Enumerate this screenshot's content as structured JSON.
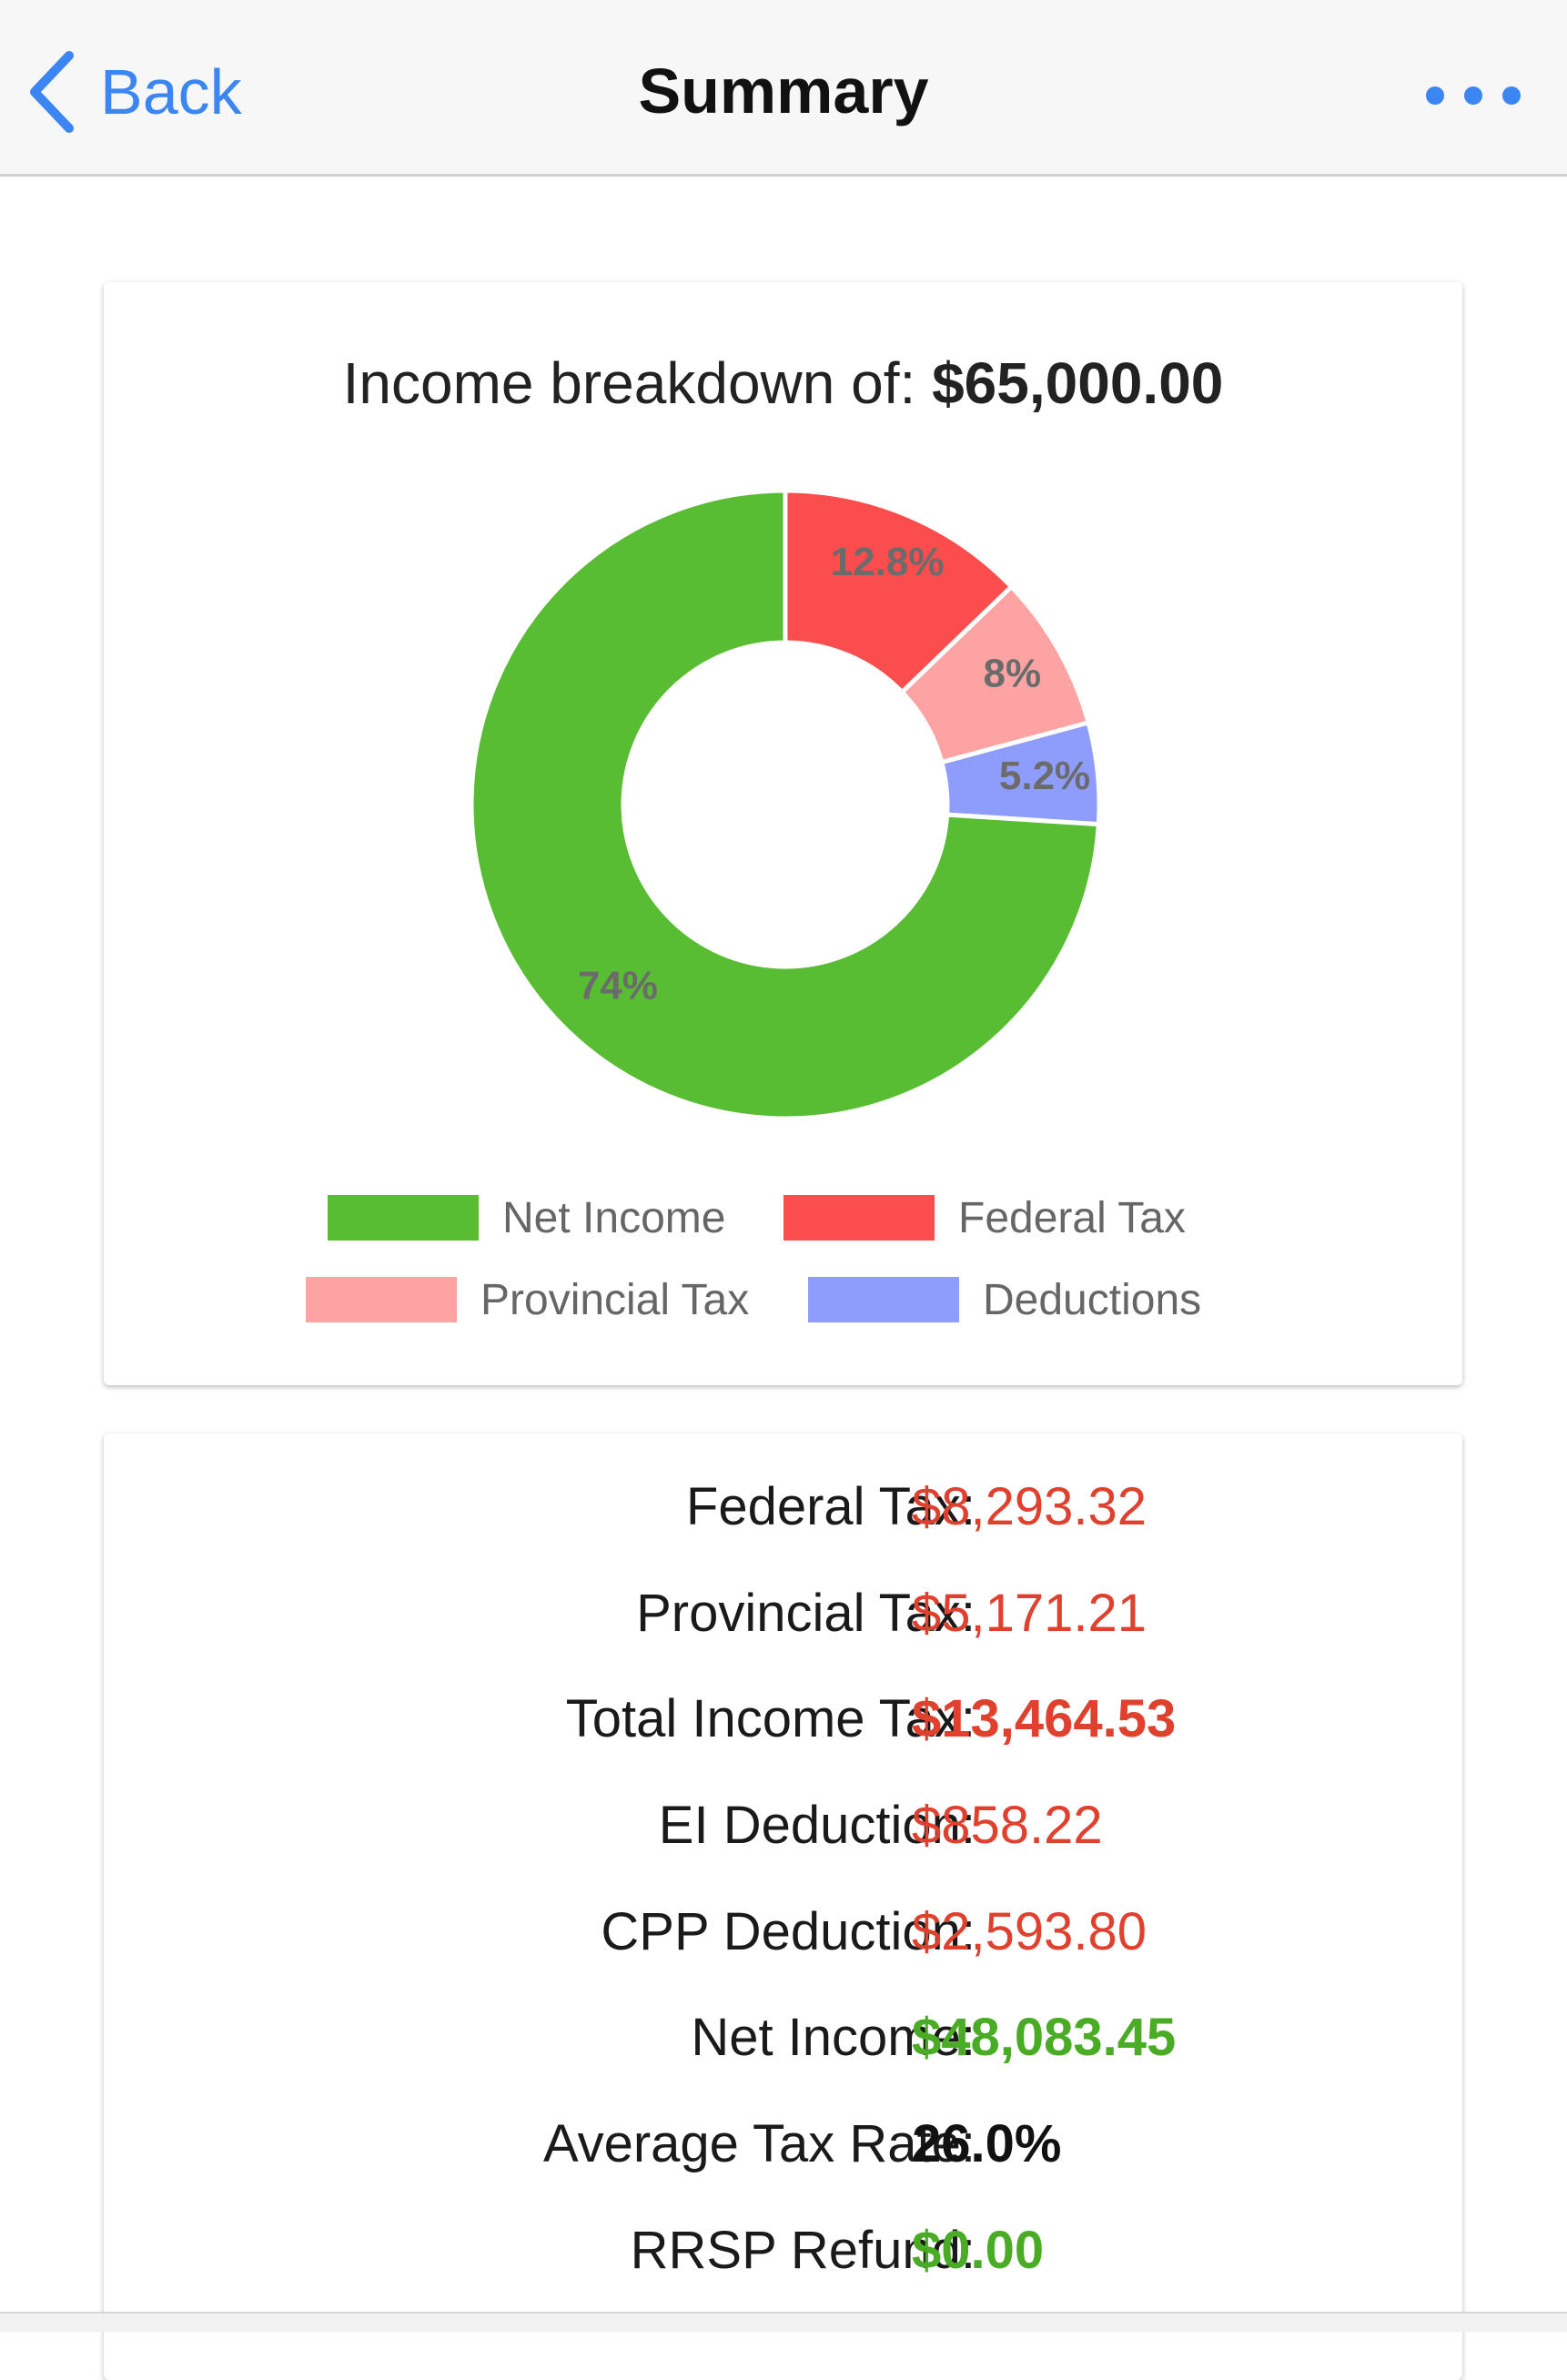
{
  "nav": {
    "back_label": "Back",
    "title": "Summary"
  },
  "breakdown": {
    "label": "Income breakdown of:",
    "amount": "$65,000.00"
  },
  "colors": {
    "net_income": "#58bd32",
    "federal_tax": "#fb4d4d",
    "provincial_tax": "#fda3a3",
    "deductions": "#8e9dfc",
    "negative": "#e0402e",
    "positive": "#4aab25",
    "neutral": "#111111",
    "accent": "#3b86f2"
  },
  "chart_data": {
    "type": "pie",
    "categories": [
      "Net Income",
      "Federal Tax",
      "Provincial Tax",
      "Deductions"
    ],
    "values": [
      74,
      12.8,
      8,
      5.2
    ],
    "labels": [
      "74%",
      "12.8%",
      "8%",
      "5.2%"
    ],
    "colors": [
      "#58bd32",
      "#fb4d4d",
      "#fda3a3",
      "#8e9dfc"
    ],
    "legend_position": "bottom",
    "donut": true
  },
  "summary": {
    "rows": [
      {
        "label": "Federal Tax:",
        "value": "$8,293.32",
        "style": "negative",
        "bold": false
      },
      {
        "label": "Provincial Tax:",
        "value": "$5,171.21",
        "style": "negative",
        "bold": false
      },
      {
        "label": "Total Income Tax:",
        "value": "$13,464.53",
        "style": "negative",
        "bold": true
      },
      {
        "label": "EI Deduction:",
        "value": "$858.22",
        "style": "negative",
        "bold": false
      },
      {
        "label": "CPP Deduction:",
        "value": "$2,593.80",
        "style": "negative",
        "bold": false
      },
      {
        "label": "Net Income:",
        "value": "$48,083.45",
        "style": "positive",
        "bold": true
      },
      {
        "label": "Average Tax Rate:",
        "value": "26.0%",
        "style": "neutral",
        "bold": true
      },
      {
        "label": "RRSP Refund:",
        "value": "$0.00",
        "style": "positive",
        "bold": true
      }
    ]
  }
}
